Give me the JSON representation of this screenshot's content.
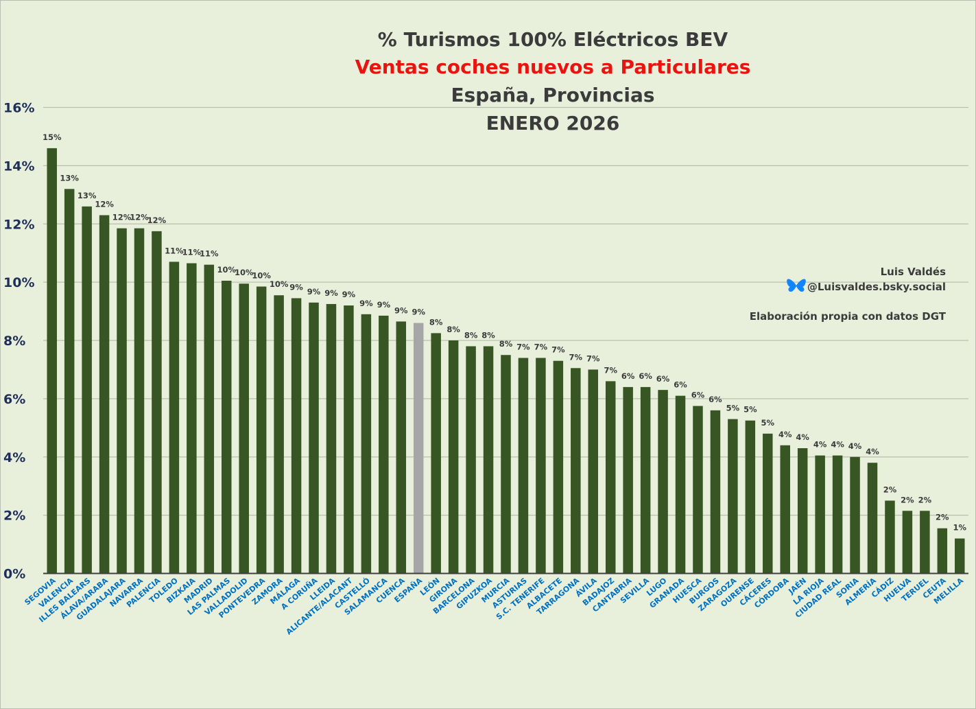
{
  "chart_data": {
    "type": "bar",
    "title": [
      "% Turismos 100% Eléctricos BEV",
      "Ventas coches nuevos a Particulares",
      "España, Provincias",
      "ENERO 2026"
    ],
    "xlabel": "",
    "ylabel": "",
    "ylim": [
      0,
      16
    ],
    "yticks": [
      "0%",
      "2%",
      "4%",
      "6%",
      "8%",
      "10%",
      "12%",
      "14%",
      "16%"
    ],
    "grid": true,
    "legend": "none",
    "colors": {
      "bar": "#375623",
      "highlight": "#a6a6a6",
      "category_label": "#0070c0",
      "title_highlight": "#e8140f"
    },
    "categories": [
      "SEGOVIA",
      "VALENCIA",
      "ILLES BALEARS",
      "ÁLAVA/ARABA",
      "GUADALAJARA",
      "NAVARRA",
      "PALENCIA",
      "TOLEDO",
      "BIZKAIA",
      "MADRID",
      "LAS PALMAS",
      "VALLADOLID",
      "PONTEVEDRA",
      "ZAMORA",
      "MÁLAGA",
      "A CORUÑA",
      "LLEIDA",
      "ALICANTE/ALACANT",
      "CASTELLÓ",
      "SALAMANCA",
      "CUENCA",
      "ESPAÑA",
      "LEÓN",
      "GIRONA",
      "BARCELONA",
      "GIPUZKOA",
      "MURCIA",
      "ASTURIAS",
      "S.C. TENERIFE",
      "ALBACETE",
      "TARRAGONA",
      "ÁVILA",
      "BADAJOZ",
      "CANTABRIA",
      "SEVILLA",
      "LUGO",
      "GRANADA",
      "HUESCA",
      "BURGOS",
      "ZARAGOZA",
      "OURENSE",
      "CÁCERES",
      "CÓRDOBA",
      "JAÉN",
      "LA RIOJA",
      "CIUDAD REAL",
      "SORIA",
      "ALMERÍA",
      "CÁDIZ",
      "HUELVA",
      "TERUEL",
      "CEUTA",
      "MELILLA"
    ],
    "values": [
      14.6,
      13.2,
      12.6,
      12.3,
      11.85,
      11.85,
      11.75,
      10.7,
      10.65,
      10.6,
      10.05,
      9.95,
      9.85,
      9.55,
      9.45,
      9.3,
      9.25,
      9.2,
      8.9,
      8.85,
      8.65,
      8.6,
      8.25,
      8.0,
      7.8,
      7.8,
      7.5,
      7.4,
      7.4,
      7.3,
      7.05,
      7.0,
      6.6,
      6.4,
      6.4,
      6.3,
      6.1,
      5.75,
      5.6,
      5.3,
      5.25,
      4.8,
      4.4,
      4.3,
      4.05,
      4.05,
      4.0,
      3.8,
      2.5,
      2.15,
      2.15,
      1.55,
      1.2
    ],
    "data_labels": [
      "15%",
      "13%",
      "13%",
      "12%",
      "12%",
      "12%",
      "12%",
      "11%",
      "11%",
      "11%",
      "10%",
      "10%",
      "10%",
      "10%",
      "9%",
      "9%",
      "9%",
      "9%",
      "9%",
      "9%",
      "9%",
      "9%",
      "8%",
      "8%",
      "8%",
      "8%",
      "8%",
      "7%",
      "7%",
      "7%",
      "7%",
      "7%",
      "7%",
      "6%",
      "6%",
      "6%",
      "6%",
      "6%",
      "6%",
      "5%",
      "5%",
      "5%",
      "4%",
      "4%",
      "4%",
      "4%",
      "4%",
      "4%",
      "2%",
      "2%",
      "2%",
      "2%",
      "1%"
    ],
    "highlight_index": 21
  },
  "credits": {
    "author": "Luis Valdés",
    "handle": "@Luisvaldes.bsky.social",
    "source": "Elaboración propia con datos DGT"
  }
}
